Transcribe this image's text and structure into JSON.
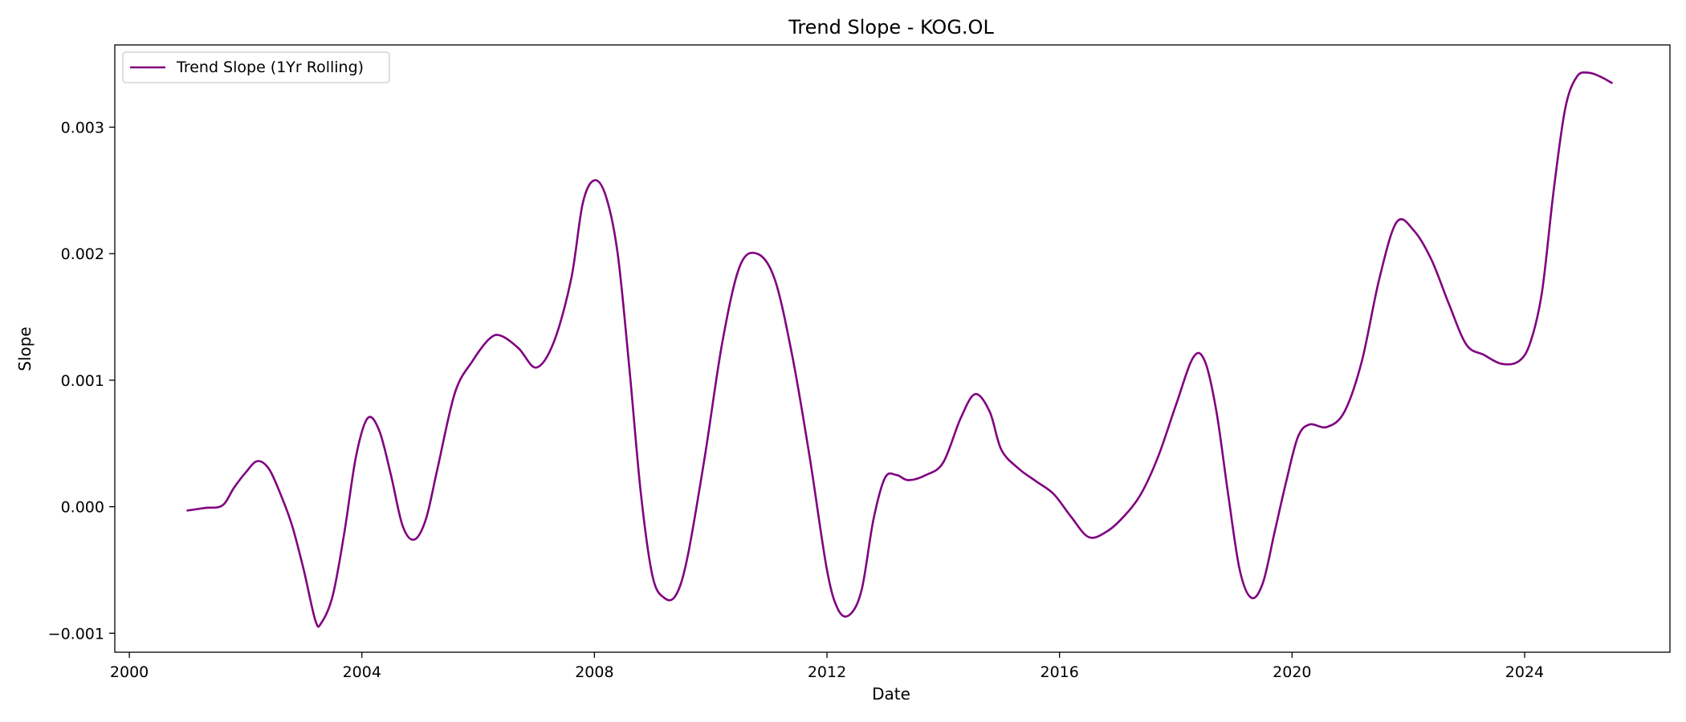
{
  "chart_data": {
    "type": "line",
    "title": "Trend Slope - KOG.OL",
    "xlabel": "Date",
    "ylabel": "Slope",
    "xlim": [
      1999.75,
      2026.5
    ],
    "ylim": [
      -0.00115,
      0.00365
    ],
    "x_ticks": [
      2000,
      2004,
      2008,
      2012,
      2016,
      2020,
      2024
    ],
    "x_tick_labels": [
      "2000",
      "2004",
      "2008",
      "2012",
      "2016",
      "2020",
      "2024"
    ],
    "y_ticks": [
      -0.001,
      0.0,
      0.001,
      0.002,
      0.003
    ],
    "y_tick_labels": [
      "−0.001",
      "0.000",
      "0.001",
      "0.002",
      "0.003"
    ],
    "grid": false,
    "legend": {
      "position": "top-left",
      "entries": [
        "Trend Slope (1Yr Rolling)"
      ]
    },
    "series": [
      {
        "name": "Trend Slope (1Yr Rolling)",
        "color": "#800080",
        "points": [
          [
            2001.0,
            -3e-05
          ],
          [
            2001.3,
            -1e-05
          ],
          [
            2001.6,
            1e-05
          ],
          [
            2001.8,
            0.00015
          ],
          [
            2002.0,
            0.00027
          ],
          [
            2002.2,
            0.00036
          ],
          [
            2002.4,
            0.0003
          ],
          [
            2002.6,
            0.0001
          ],
          [
            2002.8,
            -0.00015
          ],
          [
            2003.0,
            -0.0005
          ],
          [
            2003.2,
            -0.0009
          ],
          [
            2003.3,
            -0.00092
          ],
          [
            2003.5,
            -0.0007
          ],
          [
            2003.7,
            -0.0002
          ],
          [
            2003.9,
            0.0004
          ],
          [
            2004.1,
            0.0007
          ],
          [
            2004.3,
            0.0006
          ],
          [
            2004.5,
            0.00025
          ],
          [
            2004.7,
            -0.00015
          ],
          [
            2004.9,
            -0.00026
          ],
          [
            2005.1,
            -0.0001
          ],
          [
            2005.3,
            0.0003
          ],
          [
            2005.6,
            0.0009
          ],
          [
            2005.9,
            0.00115
          ],
          [
            2006.2,
            0.00133
          ],
          [
            2006.4,
            0.00135
          ],
          [
            2006.7,
            0.00125
          ],
          [
            2007.0,
            0.0011
          ],
          [
            2007.3,
            0.0013
          ],
          [
            2007.6,
            0.0018
          ],
          [
            2007.8,
            0.0024
          ],
          [
            2008.0,
            0.00258
          ],
          [
            2008.2,
            0.00245
          ],
          [
            2008.4,
            0.002
          ],
          [
            2008.6,
            0.0011
          ],
          [
            2008.8,
            0.0001
          ],
          [
            2009.0,
            -0.00055
          ],
          [
            2009.2,
            -0.00072
          ],
          [
            2009.4,
            -0.0007
          ],
          [
            2009.6,
            -0.0004
          ],
          [
            2009.9,
            0.0004
          ],
          [
            2010.2,
            0.0013
          ],
          [
            2010.5,
            0.0019
          ],
          [
            2010.8,
            0.002
          ],
          [
            2011.1,
            0.0018
          ],
          [
            2011.4,
            0.0012
          ],
          [
            2011.7,
            0.0004
          ],
          [
            2012.0,
            -0.0005
          ],
          [
            2012.2,
            -0.00082
          ],
          [
            2012.4,
            -0.00085
          ],
          [
            2012.6,
            -0.00065
          ],
          [
            2012.8,
            -0.0001
          ],
          [
            2013.0,
            0.00023
          ],
          [
            2013.2,
            0.00025
          ],
          [
            2013.4,
            0.00021
          ],
          [
            2013.7,
            0.00025
          ],
          [
            2014.0,
            0.00035
          ],
          [
            2014.3,
            0.0007
          ],
          [
            2014.55,
            0.00089
          ],
          [
            2014.8,
            0.00075
          ],
          [
            2015.0,
            0.00045
          ],
          [
            2015.3,
            0.0003
          ],
          [
            2015.6,
            0.0002
          ],
          [
            2015.9,
            0.0001
          ],
          [
            2016.2,
            -8e-05
          ],
          [
            2016.5,
            -0.00024
          ],
          [
            2016.8,
            -0.0002
          ],
          [
            2017.1,
            -8e-05
          ],
          [
            2017.4,
            0.0001
          ],
          [
            2017.7,
            0.0004
          ],
          [
            2018.0,
            0.0008
          ],
          [
            2018.3,
            0.00118
          ],
          [
            2018.5,
            0.00115
          ],
          [
            2018.7,
            0.00075
          ],
          [
            2018.9,
            0.0001
          ],
          [
            2019.1,
            -0.0005
          ],
          [
            2019.3,
            -0.00072
          ],
          [
            2019.5,
            -0.0006
          ],
          [
            2019.7,
            -0.0002
          ],
          [
            2019.9,
            0.0002
          ],
          [
            2020.1,
            0.00055
          ],
          [
            2020.3,
            0.00065
          ],
          [
            2020.6,
            0.00063
          ],
          [
            2020.9,
            0.00075
          ],
          [
            2021.2,
            0.00115
          ],
          [
            2021.5,
            0.0018
          ],
          [
            2021.8,
            0.00225
          ],
          [
            2022.1,
            0.00218
          ],
          [
            2022.4,
            0.00195
          ],
          [
            2022.7,
            0.0016
          ],
          [
            2023.0,
            0.00128
          ],
          [
            2023.3,
            0.0012
          ],
          [
            2023.6,
            0.00113
          ],
          [
            2023.9,
            0.00115
          ],
          [
            2024.1,
            0.0013
          ],
          [
            2024.3,
            0.0017
          ],
          [
            2024.5,
            0.0025
          ],
          [
            2024.7,
            0.00315
          ],
          [
            2024.9,
            0.0034
          ],
          [
            2025.1,
            0.00343
          ],
          [
            2025.3,
            0.0034
          ],
          [
            2025.5,
            0.00335
          ]
        ]
      }
    ]
  }
}
